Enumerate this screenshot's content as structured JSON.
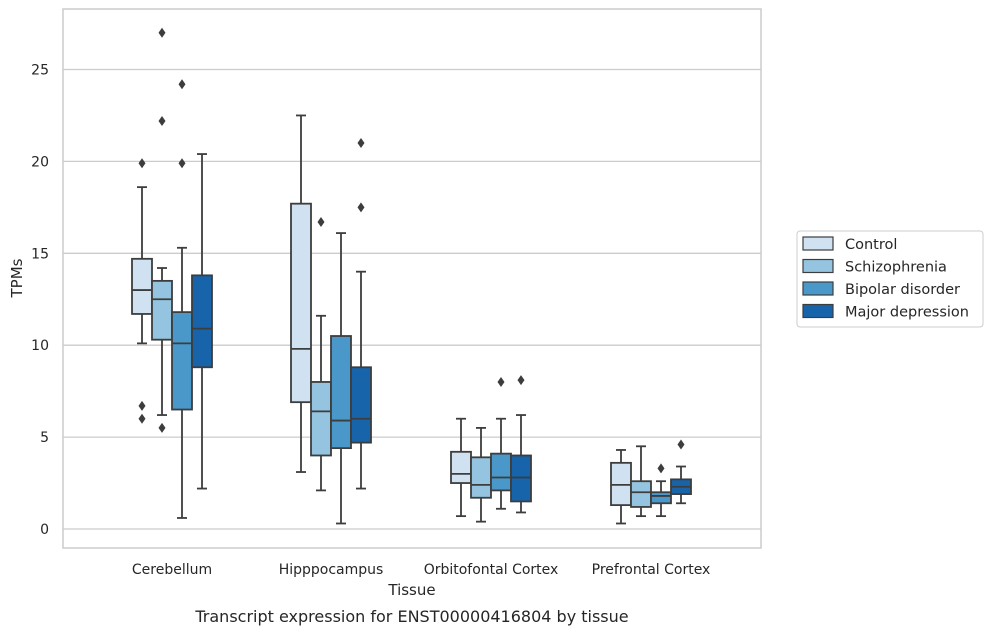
{
  "chart_data": {
    "type": "box",
    "title": "Transcript expression for ENST00000416804 by tissue",
    "xlabel": "Tissue",
    "ylabel": "TPMs",
    "ylim": [
      -1,
      28
    ],
    "yticks": [
      0,
      5,
      10,
      15,
      20,
      25
    ],
    "grid": "horizontal",
    "legend_position": "right",
    "categories": [
      "Cerebellum",
      "Hipppocampus",
      "Orbitofontal Cortex",
      "Prefrontal Cortex"
    ],
    "series": [
      {
        "name": "Control",
        "color": "#d0e1f2",
        "boxes": [
          {
            "whislo": 10.1,
            "q1": 11.7,
            "med": 13.0,
            "q3": 14.7,
            "whishi": 18.6,
            "fliers": [
              19.9,
              6.7,
              6.0
            ]
          },
          {
            "whislo": 3.1,
            "q1": 6.9,
            "med": 9.8,
            "q3": 17.7,
            "whishi": 22.5,
            "fliers": []
          },
          {
            "whislo": 0.7,
            "q1": 2.5,
            "med": 3.0,
            "q3": 4.2,
            "whishi": 6.0,
            "fliers": []
          },
          {
            "whislo": 0.3,
            "q1": 1.3,
            "med": 2.4,
            "q3": 3.6,
            "whishi": 4.3,
            "fliers": []
          }
        ]
      },
      {
        "name": "Schizophrenia",
        "color": "#94c4df",
        "boxes": [
          {
            "whislo": 6.2,
            "q1": 10.3,
            "med": 12.5,
            "q3": 13.5,
            "whishi": 14.2,
            "fliers": [
              22.2,
              27.0,
              5.5
            ]
          },
          {
            "whislo": 2.1,
            "q1": 4.0,
            "med": 6.4,
            "q3": 8.0,
            "whishi": 11.6,
            "fliers": [
              16.7
            ]
          },
          {
            "whislo": 0.4,
            "q1": 1.7,
            "med": 2.4,
            "q3": 3.9,
            "whishi": 5.5,
            "fliers": []
          },
          {
            "whislo": 0.7,
            "q1": 1.2,
            "med": 2.0,
            "q3": 2.6,
            "whishi": 4.5,
            "fliers": []
          }
        ]
      },
      {
        "name": "Bipolar disorder",
        "color": "#4a98c9",
        "boxes": [
          {
            "whislo": 0.6,
            "q1": 6.5,
            "med": 10.1,
            "q3": 11.8,
            "whishi": 15.3,
            "fliers": [
              24.2,
              19.9
            ]
          },
          {
            "whislo": 0.3,
            "q1": 4.4,
            "med": 5.9,
            "q3": 10.5,
            "whishi": 16.1,
            "fliers": []
          },
          {
            "whislo": 1.1,
            "q1": 2.1,
            "med": 2.8,
            "q3": 4.1,
            "whishi": 6.0,
            "fliers": [
              8.0
            ]
          },
          {
            "whislo": 0.7,
            "q1": 1.4,
            "med": 1.8,
            "q3": 2.0,
            "whishi": 2.6,
            "fliers": [
              3.3
            ]
          }
        ]
      },
      {
        "name": "Major depression",
        "color": "#1764ab",
        "boxes": [
          {
            "whislo": 2.2,
            "q1": 8.8,
            "med": 10.9,
            "q3": 13.8,
            "whishi": 20.4,
            "fliers": []
          },
          {
            "whislo": 2.2,
            "q1": 4.7,
            "med": 6.0,
            "q3": 8.8,
            "whishi": 14.0,
            "fliers": [
              21.0,
              17.5
            ]
          },
          {
            "whislo": 0.9,
            "q1": 1.5,
            "med": 2.8,
            "q3": 4.0,
            "whishi": 6.2,
            "fliers": [
              8.1
            ]
          },
          {
            "whislo": 1.4,
            "q1": 1.9,
            "med": 2.3,
            "q3": 2.7,
            "whishi": 3.4,
            "fliers": [
              4.6
            ]
          }
        ]
      }
    ]
  }
}
